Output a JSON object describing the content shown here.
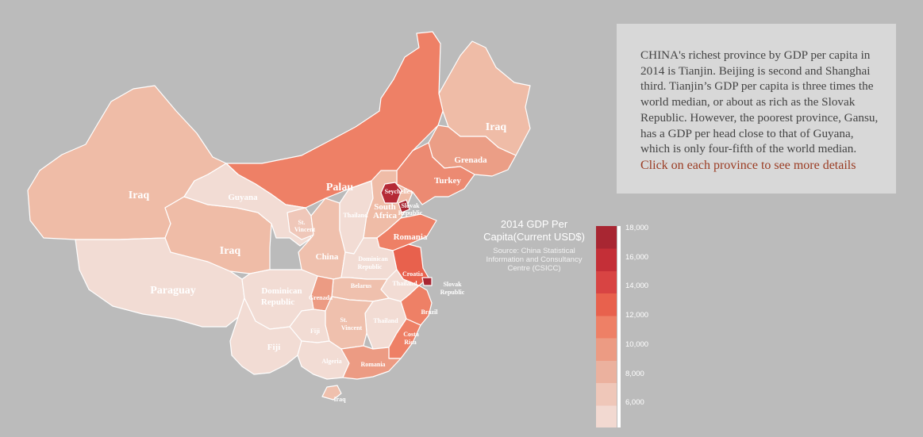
{
  "info": {
    "body": "CHINA's richest province by GDP per capita in 2014 is Tianjin. Beijing is second and Shanghai third. Tianjin’s GDP per capita is three times the world median, or about as rich as the Slovak Republic. However, the poorest province, Gansu, has a GDP per head close to that of Guyana, which is only four-fifth of the world median.",
    "cta": "Click on each province to see more details"
  },
  "legend": {
    "title": "2014 GDP Per Capita(Current USD$)",
    "source": "Source: China Statistical Information and Consultancy Centre (CSICC)",
    "ticks": [
      "18,000",
      "16,000",
      "14,000",
      "12,000",
      "10,000",
      "8,000",
      "6,000"
    ],
    "colors": [
      "#f2d9d1",
      "#efc7b9",
      "#ebb19e",
      "#ec9b83",
      "#ee8066",
      "#e8614d",
      "#d84443",
      "#c42f37",
      "#a82632"
    ]
  },
  "map": {
    "labels": {
      "xinjiang": "Iraq",
      "tibet": "Paraguay",
      "qinghai": "Iraq",
      "gansu": "Guyana",
      "inner_mongolia": "Palau",
      "heilongjiang": "Iraq",
      "jilin": "Grenada",
      "liaoning": "Turkey",
      "beijing": "Seychelles",
      "tianjin": "Slovak Republic",
      "hebei": "South Africa",
      "shanxi": "Thailand",
      "ningxia": "St. Vincent",
      "shaanxi": "China",
      "shandong": "Romania",
      "henan": "Dominican Republic",
      "jiangsu": "Croatia",
      "shanghai": "Slovak Republic",
      "anhui": "Thailand",
      "hubei": "Belarus",
      "sichuan": "Dominican Republic",
      "chongqing": "Grenada",
      "zhejiang": "Brazil",
      "jiangxi": "Thailand",
      "hunan": "St. Vincent",
      "guizhou": "Fiji",
      "yunnan": "Fiji",
      "fujian": "Costa Rica",
      "guangxi": "Algeria",
      "guangdong": "Romania",
      "hainan": "Iraq"
    }
  }
}
